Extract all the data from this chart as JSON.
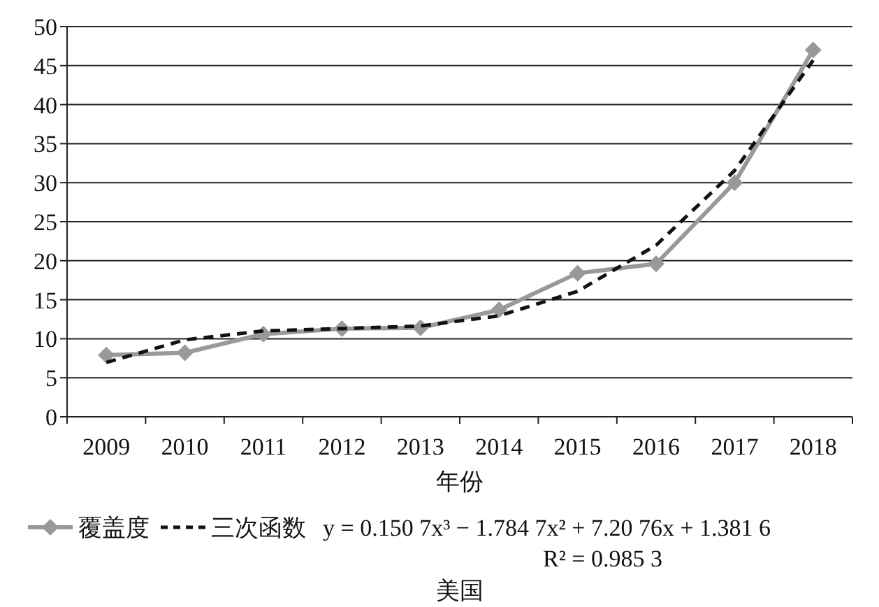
{
  "chart_data": {
    "type": "line",
    "title": "美国",
    "xlabel": "年份",
    "categories": [
      "2009",
      "2010",
      "2011",
      "2012",
      "2013",
      "2014",
      "2015",
      "2016",
      "2017",
      "2018"
    ],
    "series": [
      {
        "name": "覆盖度",
        "color": "#999999",
        "marker": "diamond",
        "line_style": "solid",
        "values": [
          7.9,
          8.2,
          10.6,
          11.3,
          11.4,
          13.7,
          18.4,
          19.6,
          30,
          47
        ]
      },
      {
        "name": "三次函数",
        "color": "#111111",
        "marker": "none",
        "line_style": "dashed",
        "values": [
          6.96,
          9.86,
          11.01,
          11.3,
          11.64,
          12.93,
          16.08,
          21.98,
          31.55,
          45.69
        ]
      }
    ],
    "annotations": [
      "y = 0.150 7x³ − 1.784 7x² + 7.20 76x + 1.381 6",
      "R² = 0.985 3"
    ],
    "ylim": [
      0,
      50
    ],
    "yticks": [
      0,
      5,
      10,
      15,
      20,
      25,
      30,
      35,
      40,
      45,
      50
    ],
    "grid": "y",
    "legend": "bottom"
  }
}
